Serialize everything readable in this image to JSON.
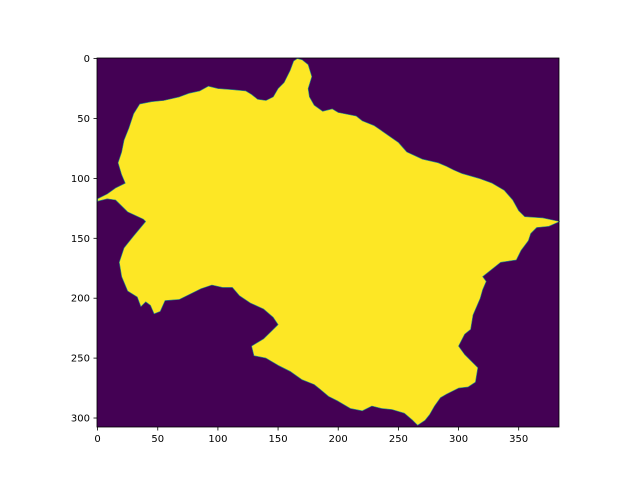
{
  "chart_data": {
    "type": "heatmap",
    "title": "",
    "xlabel": "",
    "ylabel": "",
    "image_shape": [
      308,
      384
    ],
    "xlim": [
      -0.5,
      383.5
    ],
    "ylim": [
      307.5,
      -0.5
    ],
    "y_axis_inverted": true,
    "x_ticks": [
      0,
      50,
      100,
      150,
      200,
      250,
      300,
      350
    ],
    "y_ticks": [
      0,
      50,
      100,
      150,
      200,
      250,
      300
    ],
    "x_tick_labels": [
      "0",
      "50",
      "100",
      "150",
      "200",
      "250",
      "300",
      "350"
    ],
    "y_tick_labels": [
      "0",
      "50",
      "100",
      "150",
      "200",
      "250",
      "300"
    ],
    "colormap": "viridis",
    "values": {
      "background": 0,
      "region": 1
    },
    "colors": {
      "background": "#440154",
      "region": "#fde725",
      "edge": "#21918c"
    },
    "region_outline": [
      [
        0,
        119
      ],
      [
        8,
        117
      ],
      [
        15,
        118
      ],
      [
        25,
        128
      ],
      [
        38,
        134
      ],
      [
        40,
        136
      ],
      [
        30,
        148
      ],
      [
        22,
        158
      ],
      [
        18,
        170
      ],
      [
        20,
        182
      ],
      [
        25,
        194
      ],
      [
        33,
        199
      ],
      [
        36,
        207
      ],
      [
        40,
        203
      ],
      [
        44,
        206
      ],
      [
        47,
        213
      ],
      [
        52,
        211
      ],
      [
        56,
        202
      ],
      [
        68,
        201
      ],
      [
        76,
        197
      ],
      [
        86,
        192
      ],
      [
        95,
        189
      ],
      [
        104,
        191
      ],
      [
        112,
        191
      ],
      [
        118,
        198
      ],
      [
        127,
        204
      ],
      [
        138,
        209
      ],
      [
        146,
        216
      ],
      [
        150,
        222
      ],
      [
        142,
        230
      ],
      [
        138,
        234
      ],
      [
        128,
        240
      ],
      [
        130,
        248
      ],
      [
        140,
        250
      ],
      [
        150,
        256
      ],
      [
        160,
        261
      ],
      [
        170,
        268
      ],
      [
        180,
        272
      ],
      [
        185,
        276
      ],
      [
        192,
        282
      ],
      [
        200,
        286
      ],
      [
        210,
        292
      ],
      [
        220,
        294
      ],
      [
        228,
        290
      ],
      [
        236,
        292
      ],
      [
        245,
        293
      ],
      [
        255,
        296
      ],
      [
        262,
        302
      ],
      [
        266,
        306
      ],
      [
        272,
        302
      ],
      [
        276,
        297
      ],
      [
        280,
        290
      ],
      [
        285,
        283
      ],
      [
        290,
        280
      ],
      [
        300,
        275
      ],
      [
        308,
        274
      ],
      [
        314,
        270
      ],
      [
        316,
        258
      ],
      [
        305,
        247
      ],
      [
        300,
        240
      ],
      [
        305,
        230
      ],
      [
        310,
        226
      ],
      [
        312,
        214
      ],
      [
        318,
        200
      ],
      [
        320,
        193
      ],
      [
        323,
        186
      ],
      [
        320,
        182
      ],
      [
        325,
        178
      ],
      [
        335,
        170
      ],
      [
        348,
        168
      ],
      [
        352,
        160
      ],
      [
        358,
        152
      ],
      [
        360,
        146
      ],
      [
        365,
        141
      ],
      [
        375,
        140
      ],
      [
        384,
        136
      ],
      [
        370,
        133
      ],
      [
        355,
        132
      ],
      [
        350,
        127
      ],
      [
        345,
        118
      ],
      [
        338,
        110
      ],
      [
        328,
        104
      ],
      [
        317,
        100
      ],
      [
        303,
        96
      ],
      [
        296,
        93
      ],
      [
        290,
        90
      ],
      [
        283,
        87
      ],
      [
        270,
        84
      ],
      [
        257,
        78
      ],
      [
        250,
        70
      ],
      [
        240,
        63
      ],
      [
        230,
        56
      ],
      [
        220,
        52
      ],
      [
        215,
        48
      ],
      [
        200,
        45
      ],
      [
        195,
        42
      ],
      [
        187,
        44
      ],
      [
        180,
        39
      ],
      [
        176,
        32
      ],
      [
        175,
        25
      ],
      [
        178,
        15
      ],
      [
        175,
        5
      ],
      [
        170,
        1
      ],
      [
        166,
        0
      ],
      [
        163,
        2
      ],
      [
        160,
        10
      ],
      [
        155,
        20
      ],
      [
        150,
        25
      ],
      [
        146,
        32
      ],
      [
        140,
        35
      ],
      [
        133,
        34
      ],
      [
        128,
        30
      ],
      [
        123,
        27
      ],
      [
        112,
        26
      ],
      [
        100,
        25
      ],
      [
        92,
        23
      ],
      [
        85,
        27
      ],
      [
        76,
        29
      ],
      [
        68,
        32
      ],
      [
        55,
        35
      ],
      [
        45,
        36
      ],
      [
        35,
        38
      ],
      [
        30,
        46
      ],
      [
        26,
        58
      ],
      [
        22,
        68
      ],
      [
        20,
        78
      ],
      [
        17,
        87
      ],
      [
        20,
        97
      ],
      [
        23,
        104
      ],
      [
        15,
        108
      ],
      [
        8,
        113
      ],
      [
        0,
        117
      ]
    ]
  }
}
